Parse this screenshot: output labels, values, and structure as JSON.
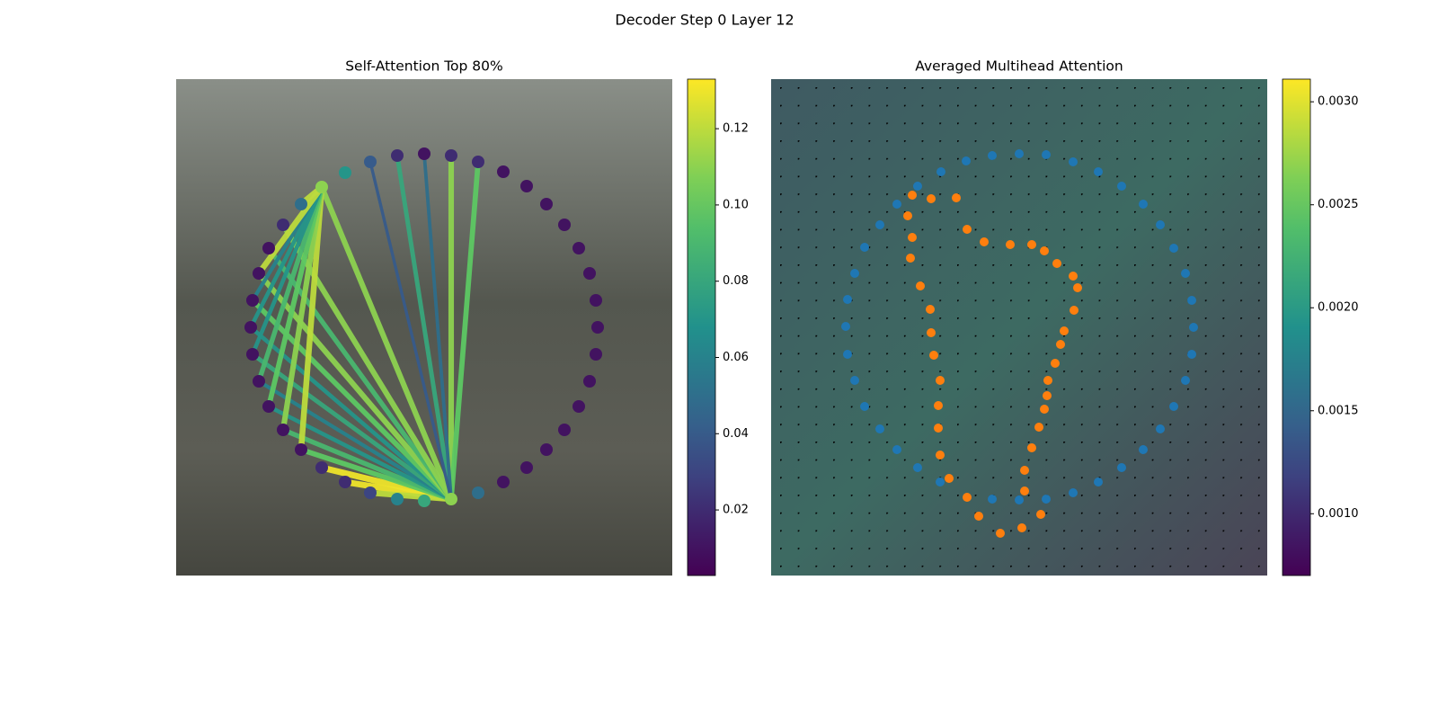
{
  "title": "Decoder Step 0 Layer 12",
  "chart_data": [
    {
      "type": "network",
      "title": "Self-Attention Top 80%",
      "colormap": "viridis",
      "xlim": [
        0,
        552
      ],
      "ylim": [
        552,
        0
      ],
      "nodes": {
        "x": [
          306,
          336,
          364,
          390,
          412,
          432,
          448,
          460,
          467,
          469,
          467,
          460,
          448,
          432,
          412,
          390,
          364,
          336,
          306,
          276,
          246,
          216,
          188,
          162,
          139,
          119,
          103,
          92,
          85,
          83,
          85,
          92,
          103,
          119,
          139,
          162,
          188,
          216,
          246,
          276
        ],
        "y": [
          85,
          92,
          104,
          120,
          140,
          162,
          188,
          216,
          246,
          276,
          306,
          336,
          364,
          390,
          413,
          433,
          449,
          460,
          467,
          469,
          467,
          460,
          448,
          432,
          413,
          390,
          364,
          336,
          306,
          276,
          246,
          216,
          188,
          162,
          140,
          120,
          104,
          92,
          85,
          83
        ],
        "values": [
          0.11,
          0.05,
          0.01,
          0.01,
          0.01,
          0.01,
          0.01,
          0.01,
          0.01,
          0.01,
          0.01,
          0.01,
          0.01,
          0.01,
          0.01,
          0.01,
          0.01,
          0.02,
          0.02,
          0.01,
          0.02,
          0.04,
          0.07,
          0.11,
          0.05,
          0.02,
          0.01,
          0.01,
          0.01,
          0.01,
          0.01,
          0.01,
          0.01,
          0.01,
          0.01,
          0.02,
          0.02,
          0.03,
          0.06,
          0.08
        ]
      },
      "edges": {
        "source": [
          0,
          0,
          0,
          0,
          0,
          0,
          0,
          0,
          0,
          0,
          0,
          0,
          0,
          0,
          0,
          0,
          0,
          0,
          0,
          23,
          23,
          23,
          23,
          23,
          23,
          23,
          23,
          23
        ],
        "target": [
          35,
          36,
          37,
          34,
          33,
          32,
          31,
          30,
          29,
          28,
          27,
          26,
          25,
          23,
          20,
          18,
          17,
          19,
          21,
          34,
          33,
          32,
          31,
          30,
          29,
          28,
          27,
          24
        ],
        "values": [
          0.13,
          0.13,
          0.12,
          0.1,
          0.09,
          0.07,
          0.06,
          0.08,
          0.07,
          0.1,
          0.11,
          0.09,
          0.11,
          0.11,
          0.08,
          0.11,
          0.1,
          0.05,
          0.04,
          0.12,
          0.11,
          0.1,
          0.09,
          0.07,
          0.07,
          0.06,
          0.12,
          0.12
        ]
      },
      "clim": [
        0.0028,
        0.133
      ],
      "cticks": [
        0.02,
        0.04,
        0.06,
        0.08,
        {
          "value": 0.1,
          "label": "0.10"
        },
        0.12
      ]
    },
    {
      "type": "scatter",
      "title": "Averaged Multihead Attention",
      "colormap": "viridis",
      "xlim": [
        0,
        552
      ],
      "ylim": [
        552,
        0
      ],
      "series": [
        {
          "color": "#1f77b4",
          "x": [
            188,
            246,
            276,
            306,
            336,
            364,
            390,
            414,
            433,
            448,
            461,
            468,
            470,
            468,
            461,
            448,
            433,
            414,
            390,
            364,
            336,
            306,
            276,
            246,
            217,
            189,
            163,
            140,
            121,
            104,
            93,
            85,
            83,
            85,
            93,
            104,
            121,
            140,
            163
          ],
          "y": [
            104,
            85,
            84,
            85,
            92,
            104,
            120,
            140,
            163,
            188,
            217,
            246,
            276,
            306,
            336,
            364,
            390,
            413,
            433,
            449,
            460,
            468,
            469,
            467,
            461,
            449,
            433,
            413,
            390,
            365,
            336,
            307,
            277,
            246,
            217,
            188,
            163,
            140,
            120
          ]
        },
        {
          "color": "#ff7f0e",
          "x": [
            255,
            279,
            300,
            282,
            282,
            290,
            298,
            304,
            307,
            308,
            316,
            322,
            326,
            337,
            341,
            336,
            318,
            304,
            290,
            266,
            237,
            218,
            206,
            178,
            157,
            152,
            157,
            155,
            166,
            177,
            178,
            181,
            188,
            186,
            186,
            188,
            198,
            218,
            231
          ],
          "y": [
            47,
            53,
            68,
            94,
            117,
            142,
            165,
            185,
            200,
            217,
            236,
            257,
            272,
            295,
            320,
            333,
            347,
            361,
            368,
            368,
            371,
            385,
            420,
            419,
            423,
            400,
            376,
            353,
            322,
            296,
            270,
            245,
            217,
            189,
            164,
            134,
            108,
            87,
            66
          ]
        }
      ],
      "clim": [
        0.0007,
        0.00311
      ],
      "cticks": [
        {
          "value": 0.001,
          "label": "0.0010"
        },
        {
          "value": 0.0015,
          "label": "0.0015"
        },
        {
          "value": 0.002,
          "label": "0.0020"
        },
        {
          "value": 0.0025,
          "label": "0.0025"
        },
        {
          "value": 0.003,
          "label": "0.0030"
        }
      ]
    }
  ]
}
